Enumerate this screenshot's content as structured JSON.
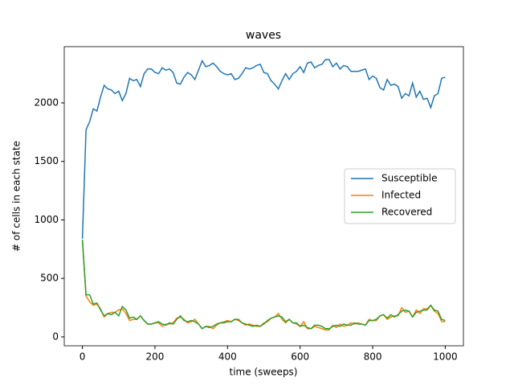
{
  "chart_data": {
    "type": "line",
    "title": "waves",
    "xlabel": "time (sweeps)",
    "ylabel": "# of cells in each state",
    "x": [
      0,
      10,
      20,
      30,
      40,
      50,
      60,
      70,
      80,
      90,
      100,
      110,
      120,
      130,
      140,
      150,
      160,
      170,
      180,
      190,
      200,
      210,
      220,
      230,
      240,
      250,
      260,
      270,
      280,
      290,
      300,
      310,
      320,
      330,
      340,
      350,
      360,
      370,
      380,
      390,
      400,
      410,
      420,
      430,
      440,
      450,
      460,
      470,
      480,
      490,
      500,
      510,
      520,
      530,
      540,
      550,
      560,
      570,
      580,
      590,
      600,
      610,
      620,
      630,
      640,
      650,
      660,
      670,
      680,
      690,
      700,
      710,
      720,
      730,
      740,
      750,
      760,
      770,
      780,
      790,
      800,
      810,
      820,
      830,
      840,
      850,
      860,
      870,
      880,
      890,
      900,
      910,
      920,
      930,
      940,
      950,
      960,
      970,
      980,
      990,
      1000
    ],
    "series": [
      {
        "name": "Susceptible",
        "color": "#1f77b4",
        "values": [
          840,
          1770,
          1840,
          1950,
          1930,
          2050,
          2150,
          2120,
          2110,
          2080,
          2100,
          2020,
          2080,
          2210,
          2190,
          2200,
          2140,
          2250,
          2290,
          2290,
          2260,
          2250,
          2300,
          2280,
          2290,
          2260,
          2170,
          2160,
          2220,
          2260,
          2240,
          2200,
          2280,
          2360,
          2310,
          2320,
          2340,
          2310,
          2270,
          2250,
          2240,
          2250,
          2200,
          2210,
          2250,
          2300,
          2290,
          2300,
          2320,
          2330,
          2260,
          2250,
          2190,
          2160,
          2120,
          2190,
          2250,
          2200,
          2250,
          2270,
          2310,
          2260,
          2340,
          2350,
          2300,
          2320,
          2330,
          2370,
          2370,
          2310,
          2340,
          2290,
          2320,
          2310,
          2270,
          2270,
          2270,
          2280,
          2290,
          2200,
          2230,
          2210,
          2130,
          2110,
          2200,
          2150,
          2160,
          2140,
          2040,
          2080,
          2060,
          2170,
          2050,
          2100,
          2030,
          2040,
          1960,
          2060,
          2080,
          2210,
          2220
        ]
      },
      {
        "name": "Infected",
        "color": "#ff7f0e",
        "values": [
          830,
          350,
          300,
          270,
          280,
          240,
          170,
          200,
          210,
          210,
          230,
          240,
          200,
          140,
          150,
          150,
          180,
          140,
          110,
          110,
          120,
          120,
          90,
          110,
          110,
          120,
          160,
          170,
          150,
          120,
          130,
          150,
          110,
          70,
          90,
          90,
          70,
          100,
          120,
          130,
          140,
          130,
          150,
          140,
          120,
          100,
          110,
          100,
          90,
          90,
          120,
          130,
          160,
          170,
          200,
          150,
          120,
          150,
          120,
          110,
          90,
          130,
          70,
          70,
          90,
          80,
          70,
          60,
          60,
          100,
          80,
          110,
          90,
          100,
          120,
          110,
          120,
          110,
          100,
          150,
          140,
          140,
          180,
          190,
          150,
          170,
          180,
          180,
          250,
          210,
          220,
          170,
          230,
          200,
          240,
          240,
          270,
          220,
          200,
          130,
          130
        ]
      },
      {
        "name": "Recovered",
        "color": "#2ca02c",
        "values": [
          830,
          360,
          360,
          280,
          290,
          230,
          180,
          200,
          190,
          210,
          180,
          260,
          230,
          160,
          170,
          150,
          180,
          140,
          110,
          110,
          120,
          130,
          110,
          100,
          120,
          110,
          150,
          180,
          140,
          130,
          140,
          130,
          110,
          70,
          90,
          80,
          90,
          110,
          120,
          120,
          130,
          130,
          150,
          150,
          120,
          110,
          100,
          90,
          100,
          90,
          110,
          140,
          160,
          170,
          180,
          170,
          130,
          150,
          120,
          120,
          90,
          100,
          80,
          70,
          100,
          100,
          90,
          70,
          70,
          90,
          100,
          90,
          110,
          100,
          100,
          120,
          110,
          110,
          100,
          140,
          140,
          150,
          180,
          190,
          160,
          190,
          170,
          190,
          220,
          230,
          220,
          170,
          210,
          220,
          230,
          230,
          270,
          230,
          220,
          150,
          140
        ]
      }
    ],
    "xlim": [
      -50,
      1050
    ],
    "ylim": [
      -76,
      2481
    ],
    "xticks": [
      0,
      200,
      400,
      600,
      800,
      1000
    ],
    "yticks": [
      0,
      500,
      1000,
      1500,
      2000
    ],
    "legend": "center right",
    "grid": false
  }
}
